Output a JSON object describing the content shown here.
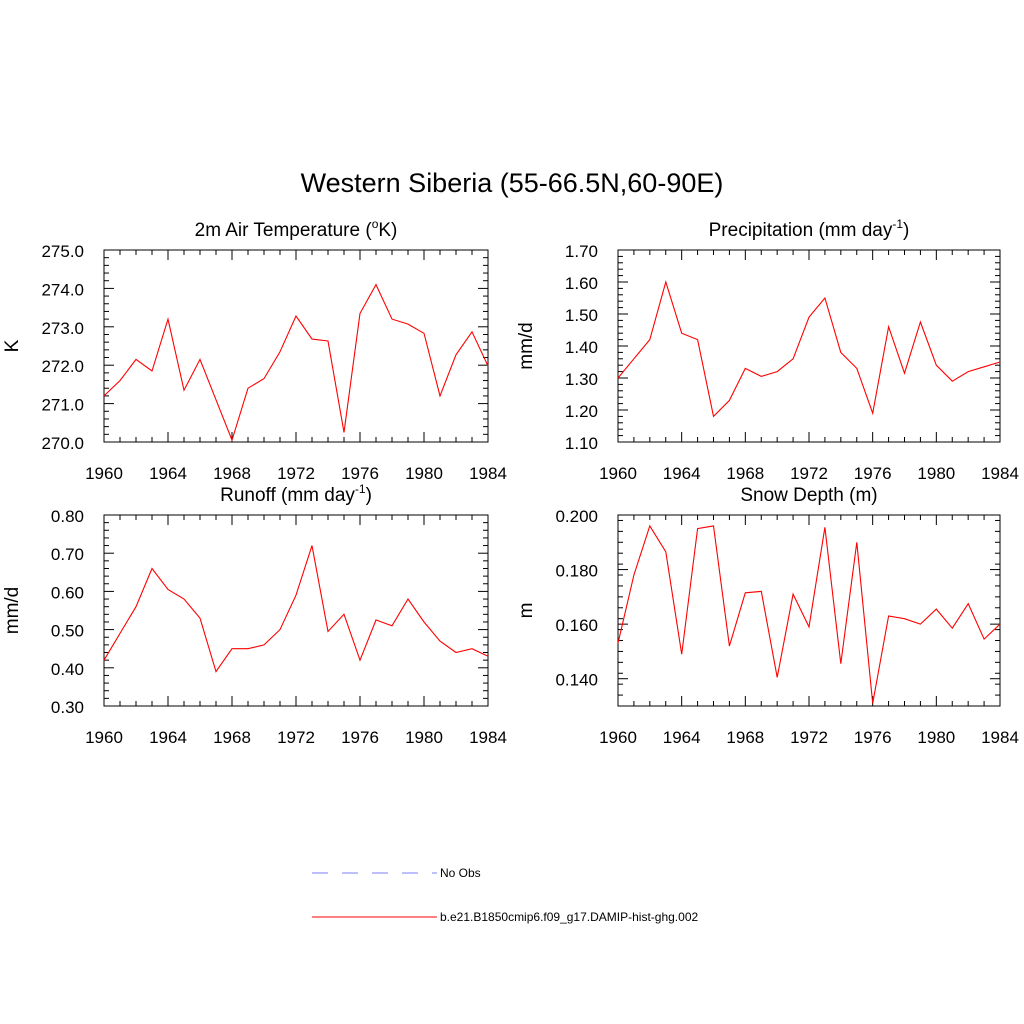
{
  "figure": {
    "title": "Western Siberia (55-66.5N,60-90E)"
  },
  "colors": {
    "model_line": "#ff0000",
    "obs_line": "#9999ff",
    "axis": "#000000"
  },
  "chart_data": [
    {
      "type": "line",
      "title": "2m Air Temperature (",
      "title_superscript": "o",
      "title_suffix": "K)",
      "ylabel": "K",
      "ylim": [
        270.0,
        275.0
      ],
      "yticks": [
        270.0,
        271.0,
        272.0,
        273.0,
        274.0,
        275.0
      ],
      "ytick_labels": [
        "270.0",
        "271.0",
        "272.0",
        "273.0",
        "274.0",
        "275.0"
      ],
      "xlim": [
        1960,
        1984
      ],
      "xticks": [
        1960,
        1964,
        1968,
        1972,
        1976,
        1980,
        1984
      ],
      "xtick_labels": [
        "1960",
        "1964",
        "1968",
        "1972",
        "1976",
        "1980",
        "1984"
      ],
      "series": [
        {
          "name": "b.e21.B1850cmip6.f09_g17.DAMIP-hist-ghg.002",
          "x": [
            1960,
            1961,
            1962,
            1963,
            1964,
            1965,
            1966,
            1967,
            1968,
            1969,
            1970,
            1971,
            1972,
            1973,
            1974,
            1975,
            1976,
            1977,
            1978,
            1979,
            1980,
            1981,
            1982,
            1983,
            1984
          ],
          "values": [
            271.2,
            271.6,
            272.15,
            271.85,
            273.2,
            271.35,
            272.15,
            271.1,
            270.05,
            271.4,
            271.65,
            272.35,
            273.28,
            272.68,
            272.63,
            270.25,
            273.35,
            274.1,
            273.2,
            273.07,
            272.83,
            271.2,
            272.27,
            272.87,
            271.98
          ]
        }
      ]
    },
    {
      "type": "line",
      "title": "Precipitation (mm day",
      "title_superscript": "-1",
      "title_suffix": ")",
      "ylabel": "mm/d",
      "ylim": [
        1.1,
        1.7
      ],
      "yticks": [
        1.1,
        1.2,
        1.3,
        1.4,
        1.5,
        1.6,
        1.7
      ],
      "ytick_labels": [
        "1.10",
        "1.20",
        "1.30",
        "1.40",
        "1.50",
        "1.60",
        "1.70"
      ],
      "xlim": [
        1960,
        1984
      ],
      "xticks": [
        1960,
        1964,
        1968,
        1972,
        1976,
        1980,
        1984
      ],
      "xtick_labels": [
        "1960",
        "1964",
        "1968",
        "1972",
        "1976",
        "1980",
        "1984"
      ],
      "series": [
        {
          "name": "b.e21.B1850cmip6.f09_g17.DAMIP-hist-ghg.002",
          "x": [
            1960,
            1961,
            1962,
            1963,
            1964,
            1965,
            1966,
            1967,
            1968,
            1969,
            1970,
            1971,
            1972,
            1973,
            1974,
            1975,
            1976,
            1977,
            1978,
            1979,
            1980,
            1981,
            1982,
            1983,
            1984
          ],
          "values": [
            1.3,
            1.36,
            1.42,
            1.6,
            1.44,
            1.42,
            1.18,
            1.23,
            1.33,
            1.305,
            1.32,
            1.36,
            1.49,
            1.55,
            1.38,
            1.33,
            1.19,
            1.46,
            1.315,
            1.475,
            1.34,
            1.29,
            1.32,
            1.335,
            1.35
          ]
        }
      ]
    },
    {
      "type": "line",
      "title": "Runoff (mm day",
      "title_superscript": "-1",
      "title_suffix": ")",
      "ylabel": "mm/d",
      "ylim": [
        0.3,
        0.8
      ],
      "yticks": [
        0.3,
        0.4,
        0.5,
        0.6,
        0.7,
        0.8
      ],
      "ytick_labels": [
        "0.30",
        "0.40",
        "0.50",
        "0.60",
        "0.70",
        "0.80"
      ],
      "xlim": [
        1960,
        1984
      ],
      "xticks": [
        1960,
        1964,
        1968,
        1972,
        1976,
        1980,
        1984
      ],
      "xtick_labels": [
        "1960",
        "1964",
        "1968",
        "1972",
        "1976",
        "1980",
        "1984"
      ],
      "series": [
        {
          "name": "b.e21.B1850cmip6.f09_g17.DAMIP-hist-ghg.002",
          "x": [
            1960,
            1961,
            1962,
            1963,
            1964,
            1965,
            1966,
            1967,
            1968,
            1969,
            1970,
            1971,
            1972,
            1973,
            1974,
            1975,
            1976,
            1977,
            1978,
            1979,
            1980,
            1981,
            1982,
            1983,
            1984
          ],
          "values": [
            0.42,
            0.49,
            0.56,
            0.66,
            0.605,
            0.58,
            0.53,
            0.39,
            0.45,
            0.45,
            0.46,
            0.5,
            0.59,
            0.72,
            0.495,
            0.54,
            0.42,
            0.525,
            0.51,
            0.58,
            0.52,
            0.47,
            0.44,
            0.45,
            0.43
          ]
        }
      ]
    },
    {
      "type": "line",
      "title": "Snow Depth (m)",
      "title_superscript": "",
      "title_suffix": "",
      "ylabel": "m",
      "ylim": [
        0.13,
        0.2
      ],
      "yticks": [
        0.14,
        0.16,
        0.18,
        0.2
      ],
      "ytick_labels": [
        "0.140",
        "0.160",
        "0.180",
        "0.200"
      ],
      "xlim": [
        1960,
        1984
      ],
      "xticks": [
        1960,
        1964,
        1968,
        1972,
        1976,
        1980,
        1984
      ],
      "xtick_labels": [
        "1960",
        "1964",
        "1968",
        "1972",
        "1976",
        "1980",
        "1984"
      ],
      "series": [
        {
          "name": "b.e21.B1850cmip6.f09_g17.DAMIP-hist-ghg.002",
          "x": [
            1960,
            1961,
            1962,
            1963,
            1964,
            1965,
            1966,
            1967,
            1968,
            1969,
            1970,
            1971,
            1972,
            1973,
            1974,
            1975,
            1976,
            1977,
            1978,
            1979,
            1980,
            1981,
            1982,
            1983,
            1984
          ],
          "values": [
            0.153,
            0.178,
            0.196,
            0.1865,
            0.149,
            0.195,
            0.196,
            0.152,
            0.1715,
            0.172,
            0.1405,
            0.171,
            0.159,
            0.1955,
            0.1455,
            0.19,
            0.131,
            0.163,
            0.162,
            0.16,
            0.1655,
            0.1585,
            0.1675,
            0.1545,
            0.16
          ]
        }
      ]
    }
  ],
  "legend": {
    "items": [
      {
        "label": "No Obs",
        "style": "dashed",
        "color": "#9999ff"
      },
      {
        "label": "b.e21.B1850cmip6.f09_g17.DAMIP-hist-ghg.002",
        "style": "solid",
        "color": "#ff0000"
      }
    ]
  }
}
